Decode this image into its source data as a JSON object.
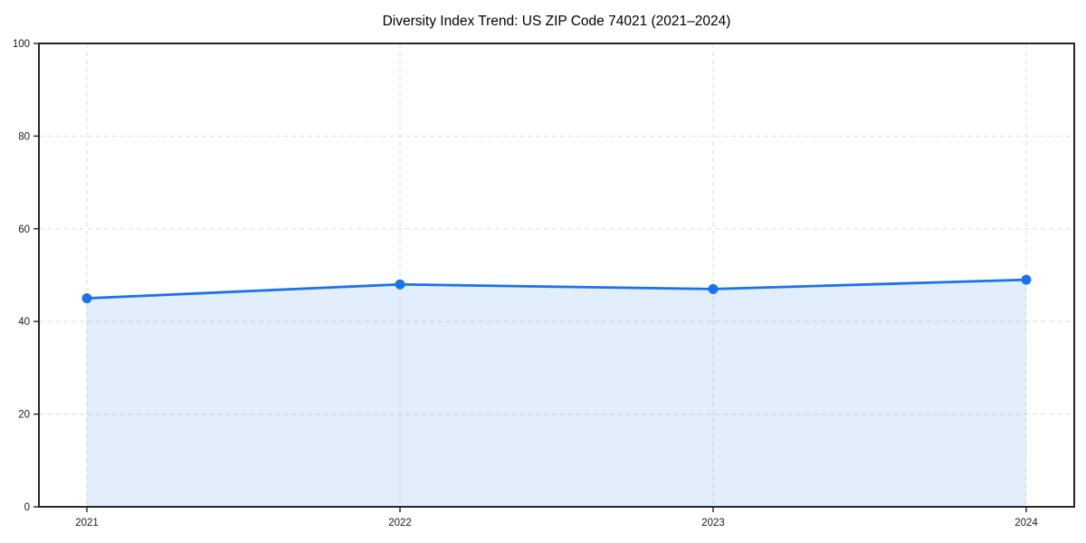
{
  "chart_data": {
    "type": "line",
    "title": "Diversity Index Trend: US ZIP Code 74021 (2021–2024)",
    "x": [
      2021,
      2022,
      2023,
      2024
    ],
    "series": [
      {
        "name": "Diversity Index",
        "values": [
          45,
          48,
          47,
          49
        ]
      }
    ],
    "xlabel": "",
    "ylabel": "",
    "ylim": [
      0,
      100
    ],
    "yticks": [
      0,
      20,
      40,
      60,
      80,
      100
    ],
    "xtick_labels": [
      "2021",
      "2022",
      "2023",
      "2024"
    ],
    "grid": "dashed-both-axes",
    "legend": "none",
    "area_fill": true,
    "markers": "circle",
    "colors": {
      "line": "#1a73e8",
      "marker": "#1a73e8",
      "fill": "rgba(26,115,232,0.12)",
      "grid": "#dcdcdc",
      "spine": "#262626",
      "tick_text": "#1a1a1a",
      "title_text": "#000000",
      "background": "#ffffff"
    }
  }
}
